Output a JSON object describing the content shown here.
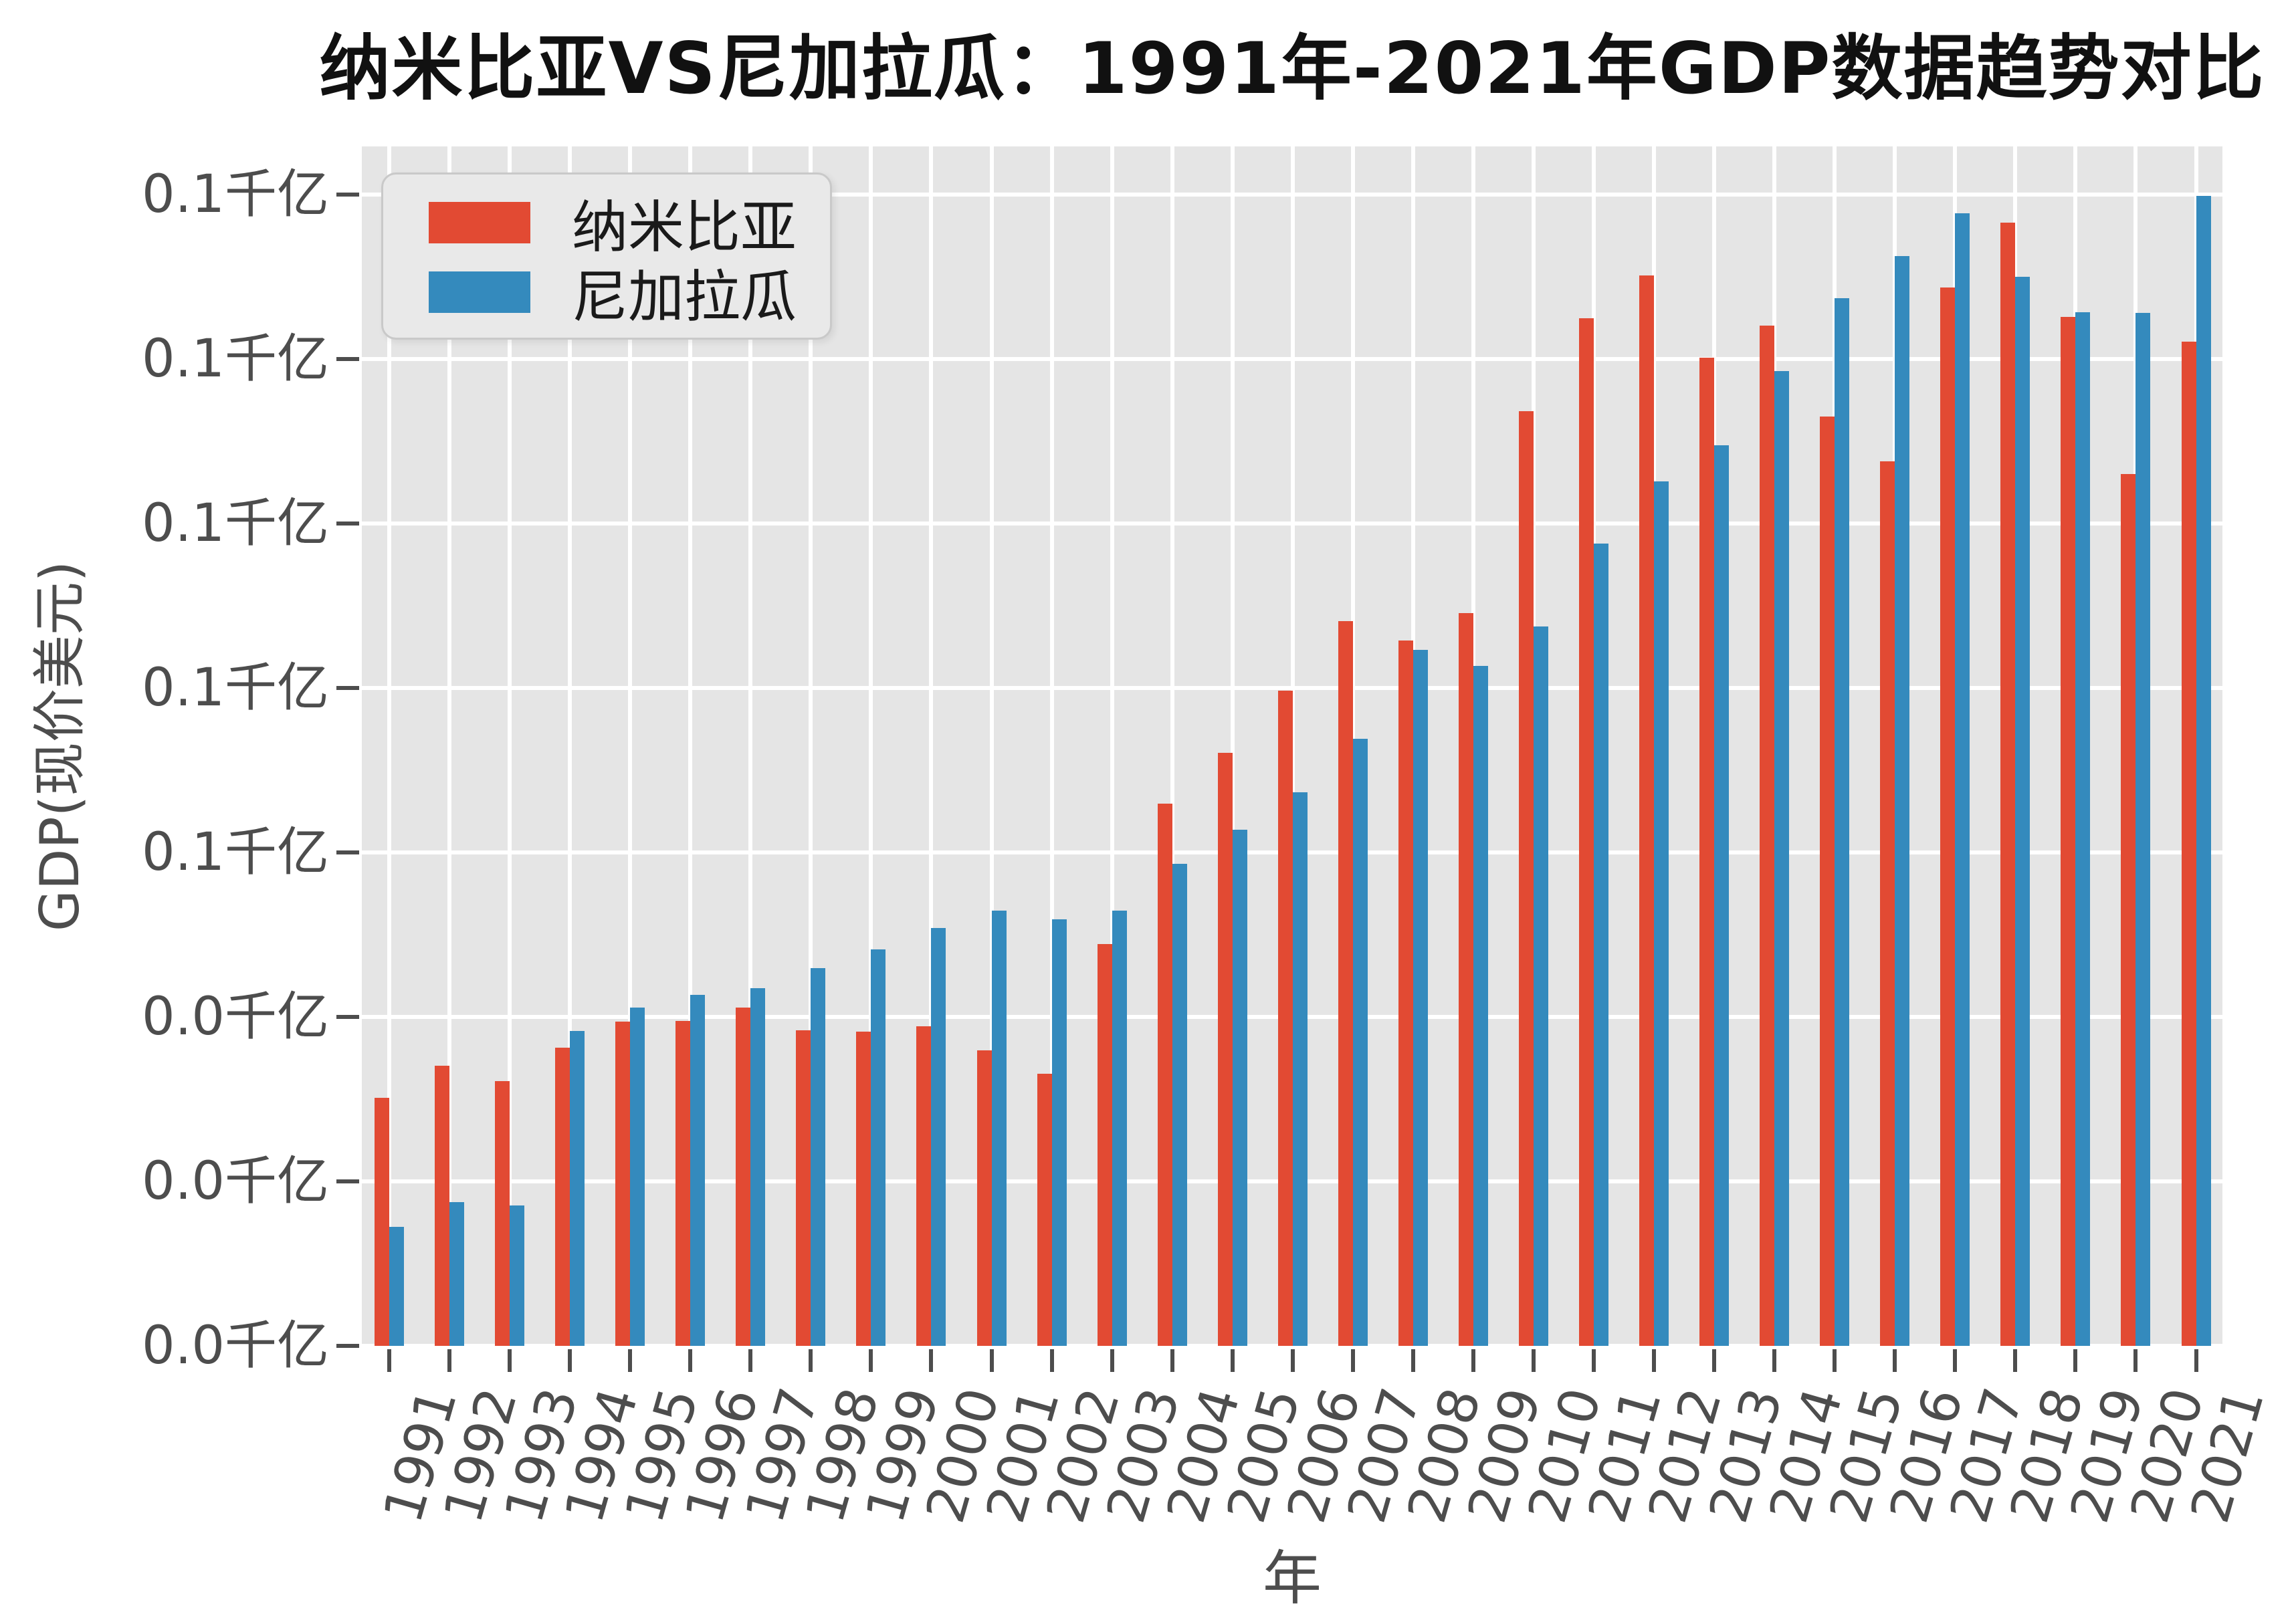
{
  "title": "纳米比亚VS尼加拉瓜：1991年-2021年GDP数据趋势对比",
  "legend": {
    "items": [
      {
        "label": "纳米比亚",
        "color": "#E24A33"
      },
      {
        "label": "尼加拉瓜",
        "color": "#348ABD"
      }
    ]
  },
  "colors": {
    "namibia_red": "#E24A33",
    "nicaragua_blue": "#348ABD",
    "plot_background": "#e5e5e5",
    "gridline": "#ffffff",
    "tick_text": "#4d4d4d",
    "title_text": "#111111"
  },
  "chart_data": {
    "type": "bar",
    "title": "纳米比亚VS尼加拉瓜：1991年-2021年GDP数据趋势对比",
    "xlabel": "年",
    "ylabel": "GDP(现价美元)",
    "unit_note": "y axis in 千亿 (hundred-billion) current US dollars; values below are billions USD",
    "legend_position": "upper left",
    "grid": "white gridlines on light gray background (ggplot style)",
    "categories": [
      "1991",
      "1992",
      "1993",
      "1994",
      "1995",
      "1996",
      "1997",
      "1998",
      "1999",
      "2000",
      "2001",
      "2002",
      "2003",
      "2004",
      "2005",
      "2006",
      "2007",
      "2008",
      "2009",
      "2010",
      "2011",
      "2012",
      "2013",
      "2014",
      "2015",
      "2016",
      "2017",
      "2018",
      "2019",
      "2020",
      "2021"
    ],
    "series": [
      {
        "name": "纳米比亚",
        "color": "#E24A33",
        "values_billion_usd": [
          3.02,
          3.41,
          3.22,
          3.63,
          3.94,
          3.95,
          4.11,
          3.84,
          3.82,
          3.89,
          3.59,
          3.31,
          4.89,
          6.59,
          7.21,
          7.97,
          8.81,
          8.58,
          8.91,
          11.37,
          12.5,
          13.02,
          12.02,
          12.41,
          11.3,
          10.76,
          12.87,
          13.66,
          12.51,
          10.6,
          12.21
        ]
      },
      {
        "name": "尼加拉瓜",
        "color": "#348ABD",
        "values_billion_usd": [
          1.45,
          1.75,
          1.71,
          3.83,
          4.11,
          4.27,
          4.35,
          4.59,
          4.82,
          5.08,
          5.29,
          5.19,
          5.29,
          5.86,
          6.28,
          6.73,
          7.38,
          8.46,
          8.27,
          8.75,
          9.76,
          10.51,
          10.95,
          11.85,
          12.74,
          13.25,
          13.77,
          13.0,
          12.57,
          12.56,
          13.98
        ]
      }
    ],
    "ylim_billion_usd": [
      0,
      14.6
    ],
    "yticks": {
      "values_billion_usd_bottom_to_top": [
        0,
        2,
        4,
        6,
        8,
        10,
        12,
        14
      ],
      "labels_bottom_to_top": [
        "0.0千亿",
        "0.0千亿",
        "0.0千亿",
        "0.1千亿",
        "0.1千亿",
        "0.1千亿",
        "0.1千亿",
        "0.1千亿"
      ]
    }
  }
}
